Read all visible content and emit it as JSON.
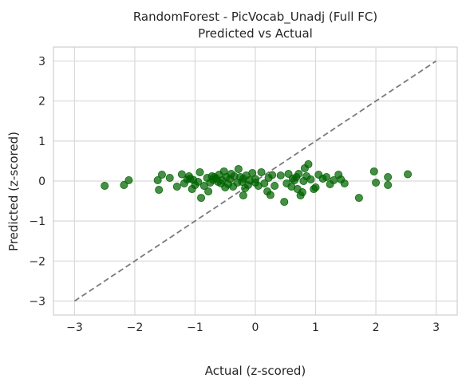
{
  "chart_data": {
    "type": "scatter",
    "title": "RandomForest - PicVocab_Unadj (Full FC)",
    "subtitle": "Predicted vs Actual",
    "xlabel": "Actual (z-scored)",
    "ylabel": "Predicted (z-scored)",
    "xlim": [
      -3.35,
      3.35
    ],
    "ylim": [
      -3.35,
      3.35
    ],
    "xticks": [
      -3,
      -2,
      -1,
      0,
      1,
      2,
      3
    ],
    "yticks": [
      -3,
      -2,
      -1,
      0,
      1,
      2,
      3
    ],
    "xtick_labels": [
      "−3",
      "−2",
      "−1",
      "0",
      "1",
      "2",
      "3"
    ],
    "ytick_labels": [
      "−3",
      "−2",
      "−1",
      "0",
      "1",
      "2",
      "3"
    ],
    "grid": true,
    "point_color": "#006400",
    "reference_line": {
      "x": [
        -3,
        3
      ],
      "y": [
        -3,
        3
      ],
      "style": "dashed",
      "color": "#7a7a7a"
    },
    "points": [
      {
        "x": -2.5,
        "y": -0.12
      },
      {
        "x": -2.18,
        "y": -0.1
      },
      {
        "x": -2.1,
        "y": 0.02
      },
      {
        "x": -1.62,
        "y": 0.02
      },
      {
        "x": -1.6,
        "y": -0.22
      },
      {
        "x": -1.55,
        "y": 0.16
      },
      {
        "x": -1.42,
        "y": 0.08
      },
      {
        "x": -1.3,
        "y": -0.14
      },
      {
        "x": -1.22,
        "y": 0.17
      },
      {
        "x": -1.18,
        "y": -0.06
      },
      {
        "x": -1.13,
        "y": 0.04
      },
      {
        "x": -1.1,
        "y": 0.12
      },
      {
        "x": -1.08,
        "y": 0.06
      },
      {
        "x": -1.05,
        "y": -0.2
      },
      {
        "x": -1.03,
        "y": 0.03
      },
      {
        "x": -1.0,
        "y": -0.1
      },
      {
        "x": -0.95,
        "y": -0.02
      },
      {
        "x": -0.92,
        "y": 0.22
      },
      {
        "x": -0.9,
        "y": -0.42
      },
      {
        "x": -0.85,
        "y": -0.12
      },
      {
        "x": -0.8,
        "y": 0.08
      },
      {
        "x": -0.78,
        "y": -0.26
      },
      {
        "x": -0.75,
        "y": -0.04
      },
      {
        "x": -0.72,
        "y": 0.12
      },
      {
        "x": -0.7,
        "y": 0.03
      },
      {
        "x": -0.68,
        "y": 0.1
      },
      {
        "x": -0.65,
        "y": 0.06
      },
      {
        "x": -0.62,
        "y": -0.02
      },
      {
        "x": -0.6,
        "y": 0.16
      },
      {
        "x": -0.57,
        "y": -0.06
      },
      {
        "x": -0.55,
        "y": 0.02
      },
      {
        "x": -0.52,
        "y": 0.24
      },
      {
        "x": -0.5,
        "y": -0.16
      },
      {
        "x": -0.48,
        "y": 0.1
      },
      {
        "x": -0.45,
        "y": -0.08
      },
      {
        "x": -0.42,
        "y": 0.05
      },
      {
        "x": -0.4,
        "y": 0.18
      },
      {
        "x": -0.37,
        "y": -0.14
      },
      {
        "x": -0.35,
        "y": 0.12
      },
      {
        "x": -0.3,
        "y": -0.04
      },
      {
        "x": -0.28,
        "y": 0.3
      },
      {
        "x": -0.25,
        "y": 0.1
      },
      {
        "x": -0.22,
        "y": -0.02
      },
      {
        "x": -0.2,
        "y": 0.06
      },
      {
        "x": -0.2,
        "y": -0.36
      },
      {
        "x": -0.17,
        "y": -0.18
      },
      {
        "x": -0.15,
        "y": 0.14
      },
      {
        "x": -0.12,
        "y": -0.1
      },
      {
        "x": -0.1,
        "y": 0.02
      },
      {
        "x": -0.05,
        "y": 0.2
      },
      {
        "x": 0.0,
        "y": -0.04
      },
      {
        "x": 0.0,
        "y": 0.05
      },
      {
        "x": 0.05,
        "y": -0.12
      },
      {
        "x": 0.1,
        "y": 0.22
      },
      {
        "x": 0.15,
        "y": -0.06
      },
      {
        "x": 0.2,
        "y": -0.26
      },
      {
        "x": 0.22,
        "y": 0.08
      },
      {
        "x": 0.25,
        "y": -0.35
      },
      {
        "x": 0.28,
        "y": 0.15
      },
      {
        "x": 0.32,
        "y": -0.12
      },
      {
        "x": 0.42,
        "y": 0.14
      },
      {
        "x": 0.48,
        "y": -0.52
      },
      {
        "x": 0.52,
        "y": -0.06
      },
      {
        "x": 0.55,
        "y": 0.18
      },
      {
        "x": 0.6,
        "y": -0.14
      },
      {
        "x": 0.62,
        "y": 0.06
      },
      {
        "x": 0.65,
        "y": 0.02
      },
      {
        "x": 0.68,
        "y": 0.1
      },
      {
        "x": 0.7,
        "y": -0.2
      },
      {
        "x": 0.72,
        "y": 0.18
      },
      {
        "x": 0.75,
        "y": -0.36
      },
      {
        "x": 0.78,
        "y": -0.28
      },
      {
        "x": 0.8,
        "y": 0.0
      },
      {
        "x": 0.82,
        "y": 0.32
      },
      {
        "x": 0.85,
        "y": 0.12
      },
      {
        "x": 0.88,
        "y": 0.42
      },
      {
        "x": 0.92,
        "y": 0.04
      },
      {
        "x": 0.97,
        "y": -0.2
      },
      {
        "x": 1.0,
        "y": -0.16
      },
      {
        "x": 1.05,
        "y": 0.16
      },
      {
        "x": 1.12,
        "y": 0.06
      },
      {
        "x": 1.18,
        "y": 0.1
      },
      {
        "x": 1.24,
        "y": -0.08
      },
      {
        "x": 1.3,
        "y": 0.02
      },
      {
        "x": 1.38,
        "y": 0.16
      },
      {
        "x": 1.42,
        "y": 0.04
      },
      {
        "x": 1.48,
        "y": -0.06
      },
      {
        "x": 1.72,
        "y": -0.42
      },
      {
        "x": 1.97,
        "y": 0.24
      },
      {
        "x": 2.0,
        "y": -0.04
      },
      {
        "x": 2.2,
        "y": 0.1
      },
      {
        "x": 2.2,
        "y": -0.1
      },
      {
        "x": 2.53,
        "y": 0.17
      }
    ]
  }
}
